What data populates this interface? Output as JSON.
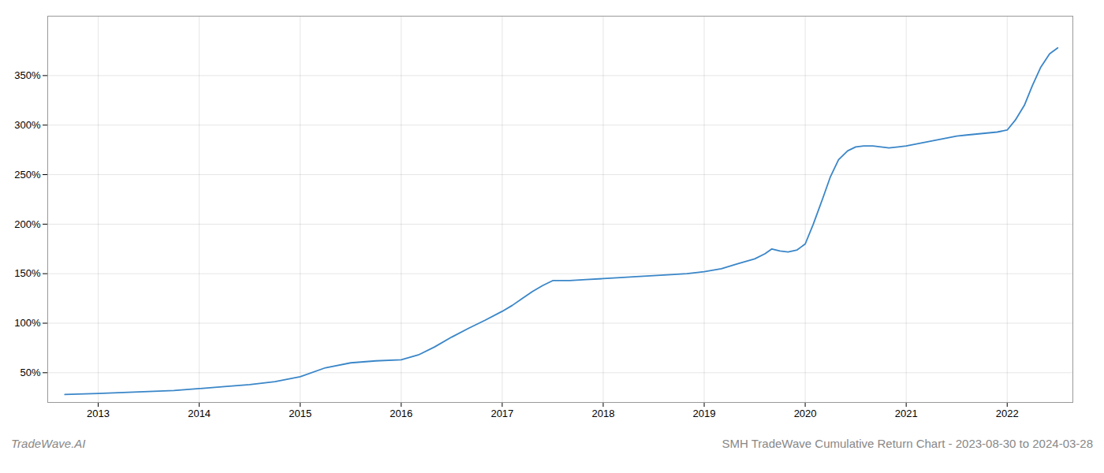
{
  "chart_data": {
    "type": "line",
    "title": "SMH TradeWave Cumulative Return Chart - 2023-08-30 to 2024-03-28",
    "annotations": [
      "TradeWave.AI"
    ],
    "color": "#3a86c8",
    "grid": true,
    "x": [
      2012.67,
      2013.0,
      2013.25,
      2013.5,
      2013.75,
      2014.0,
      2014.25,
      2014.5,
      2014.75,
      2015.0,
      2015.25,
      2015.5,
      2015.75,
      2016.0,
      2016.17,
      2016.33,
      2016.5,
      2016.67,
      2016.83,
      2017.0,
      2017.1,
      2017.2,
      2017.3,
      2017.4,
      2017.5,
      2017.67,
      2017.83,
      2018.0,
      2018.17,
      2018.33,
      2018.5,
      2018.67,
      2018.83,
      2019.0,
      2019.17,
      2019.33,
      2019.5,
      2019.6,
      2019.67,
      2019.75,
      2019.83,
      2019.92,
      2020.0,
      2020.08,
      2020.17,
      2020.25,
      2020.33,
      2020.42,
      2020.5,
      2020.58,
      2020.67,
      2020.75,
      2020.83,
      2020.92,
      2021.0,
      2021.1,
      2021.2,
      2021.3,
      2021.4,
      2021.5,
      2021.6,
      2021.7,
      2021.8,
      2021.9,
      2022.0,
      2022.08,
      2022.17,
      2022.25,
      2022.33,
      2022.42,
      2022.5
    ],
    "values": [
      28,
      29,
      30,
      31,
      32,
      34,
      36,
      38,
      41,
      46,
      55,
      60,
      62,
      63,
      68,
      76,
      86,
      95,
      103,
      112,
      118,
      125,
      132,
      138,
      143,
      143,
      144,
      145,
      146,
      147,
      148,
      149,
      150,
      152,
      155,
      160,
      165,
      170,
      175,
      173,
      172,
      174,
      180,
      200,
      225,
      248,
      265,
      274,
      278,
      279,
      279,
      278,
      277,
      278,
      279,
      281,
      283,
      285,
      287,
      289,
      290,
      291,
      292,
      293,
      295,
      305,
      320,
      340,
      358,
      372,
      378
    ],
    "xlim": [
      2012.5,
      2022.65
    ],
    "xticks": [
      2013,
      2014,
      2015,
      2016,
      2017,
      2018,
      2019,
      2020,
      2021,
      2022
    ],
    "ylim": [
      20,
      410
    ],
    "yticks": [
      {
        "value": 50,
        "label": "50%"
      },
      {
        "value": 100,
        "label": "100%"
      },
      {
        "value": 150,
        "label": "150%"
      },
      {
        "value": 200,
        "label": "200%"
      },
      {
        "value": 250,
        "label": "250%"
      },
      {
        "value": 300,
        "label": "300%"
      },
      {
        "value": 350,
        "label": "350%"
      }
    ]
  }
}
